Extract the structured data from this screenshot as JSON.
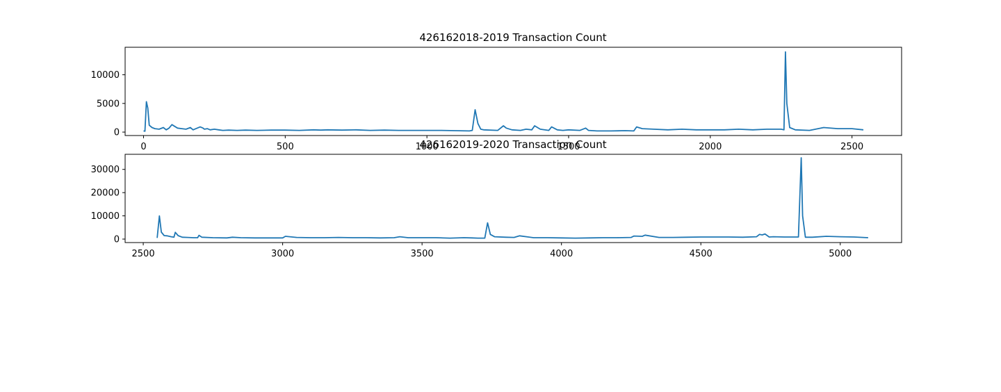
{
  "chart_data": [
    {
      "type": "line",
      "title": "426162018-2019 Transaction Count",
      "xlabel": "",
      "ylabel": "",
      "xlim": [
        -65,
        2675
      ],
      "ylim": [
        -600,
        14800
      ],
      "xticks": [
        0,
        500,
        1000,
        1500,
        2000,
        2500
      ],
      "yticks": [
        0,
        5000,
        10000
      ],
      "grid": false,
      "series": [
        {
          "color": "#1f77b4",
          "x": [
            0,
            5,
            10,
            15,
            20,
            30,
            40,
            55,
            70,
            80,
            90,
            100,
            110,
            120,
            135,
            150,
            165,
            175,
            185,
            200,
            210,
            215,
            225,
            235,
            250,
            265,
            280,
            300,
            330,
            360,
            400,
            450,
            500,
            550,
            600,
            625,
            650,
            700,
            750,
            800,
            850,
            900,
            950,
            1000,
            1050,
            1100,
            1150,
            1160,
            1170,
            1180,
            1190,
            1200,
            1250,
            1270,
            1280,
            1300,
            1330,
            1350,
            1370,
            1380,
            1400,
            1430,
            1440,
            1460,
            1480,
            1500,
            1540,
            1560,
            1570,
            1600,
            1650,
            1700,
            1730,
            1740,
            1760,
            1800,
            1850,
            1900,
            1950,
            2000,
            2050,
            2100,
            2150,
            2200,
            2250,
            2260,
            2265,
            2270,
            2280,
            2300,
            2350,
            2400,
            2450,
            2500,
            2540
          ],
          "values": [
            200,
            150,
            5300,
            4200,
            1200,
            800,
            600,
            500,
            800,
            400,
            700,
            1300,
            1000,
            700,
            600,
            500,
            800,
            400,
            600,
            900,
            700,
            500,
            600,
            400,
            500,
            400,
            300,
            350,
            300,
            350,
            300,
            350,
            350,
            300,
            400,
            350,
            400,
            350,
            400,
            300,
            350,
            300,
            300,
            300,
            300,
            250,
            200,
            300,
            3900,
            1500,
            500,
            400,
            300,
            1100,
            700,
            400,
            300,
            500,
            400,
            1100,
            500,
            300,
            900,
            400,
            300,
            400,
            300,
            700,
            300,
            200,
            200,
            250,
            200,
            900,
            600,
            500,
            400,
            500,
            400,
            400,
            400,
            500,
            400,
            500,
            500,
            400,
            14000,
            5000,
            800,
            400,
            300,
            800,
            600,
            600,
            400
          ]
        }
      ]
    },
    {
      "type": "line",
      "title": "426162019-2020 Transaction Count",
      "xlabel": "",
      "ylabel": "",
      "xlim": [
        2435,
        5220
      ],
      "ylim": [
        -1500,
        36500
      ],
      "xticks": [
        2500,
        3000,
        3500,
        4000,
        4500,
        5000
      ],
      "yticks": [
        0,
        10000,
        20000,
        30000
      ],
      "grid": false,
      "series": [
        {
          "color": "#1f77b4",
          "x": [
            2550,
            2558,
            2565,
            2575,
            2585,
            2600,
            2610,
            2615,
            2625,
            2640,
            2660,
            2680,
            2695,
            2700,
            2710,
            2750,
            2800,
            2820,
            2850,
            2900,
            2950,
            3000,
            3010,
            3050,
            3100,
            3150,
            3200,
            3250,
            3300,
            3350,
            3400,
            3420,
            3450,
            3500,
            3550,
            3600,
            3650,
            3680,
            3700,
            3725,
            3735,
            3745,
            3760,
            3800,
            3830,
            3850,
            3900,
            3950,
            4000,
            4050,
            4100,
            4150,
            4200,
            4250,
            4260,
            4290,
            4300,
            4350,
            4400,
            4450,
            4500,
            4550,
            4600,
            4650,
            4700,
            4710,
            4720,
            4730,
            4745,
            4760,
            4800,
            4850,
            4860,
            4865,
            4875,
            4900,
            4950,
            5000,
            5050,
            5100
          ],
          "values": [
            500,
            10000,
            3000,
            1500,
            1400,
            1000,
            800,
            2900,
            1500,
            800,
            700,
            600,
            600,
            1600,
            800,
            600,
            500,
            800,
            600,
            500,
            500,
            500,
            1200,
            700,
            600,
            600,
            700,
            600,
            600,
            500,
            600,
            1000,
            600,
            600,
            600,
            400,
            600,
            500,
            400,
            400,
            7000,
            2000,
            1000,
            800,
            700,
            1400,
            600,
            600,
            500,
            400,
            500,
            600,
            600,
            700,
            1300,
            1200,
            1700,
            700,
            700,
            800,
            900,
            900,
            900,
            800,
            1000,
            2000,
            1800,
            2200,
            900,
            1000,
            900,
            900,
            35000,
            10000,
            800,
            800,
            1200,
            1000,
            900,
            600
          ]
        }
      ]
    }
  ]
}
